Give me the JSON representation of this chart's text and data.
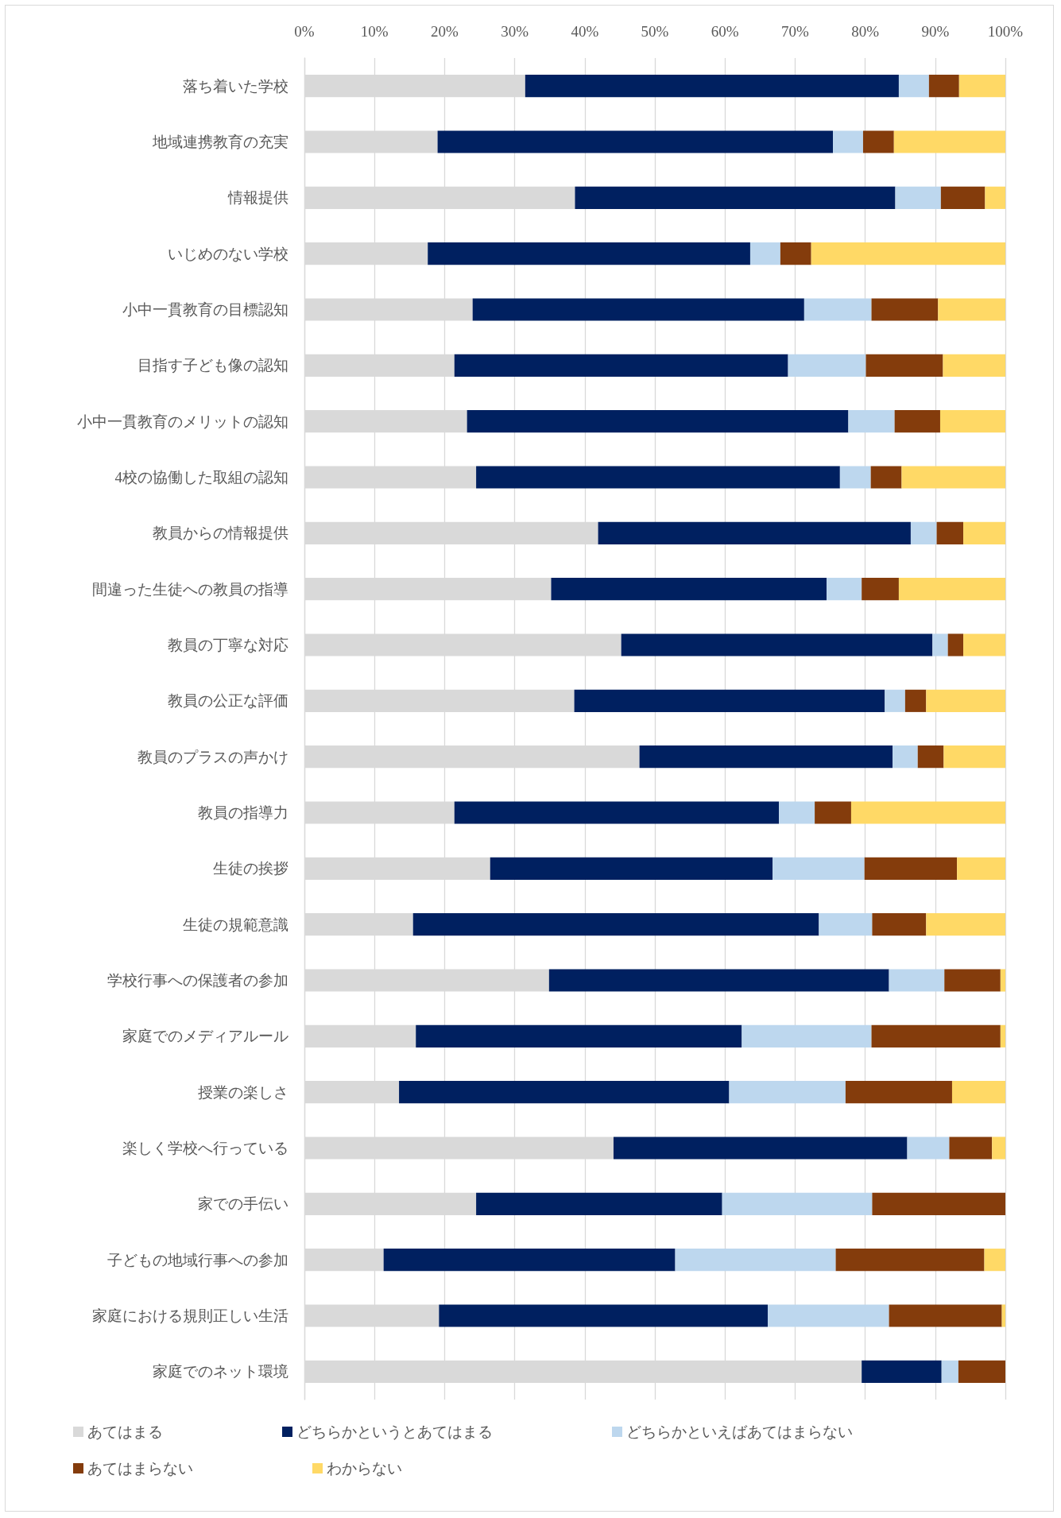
{
  "chart_data": {
    "type": "bar",
    "orientation": "horizontal",
    "stacked": true,
    "categories": [
      "落ち着いた学校",
      "地域連携教育の充実",
      "情報提供",
      "いじめのない学校",
      "小中一貫教育の目標認知",
      "目指す子ども像の認知",
      "小中一貫教育のメリットの認知",
      "4校の協働した取組の認知",
      "教員からの情報提供",
      "間違った生徒への教員の指導",
      "教員の丁寧な対応",
      "教員の公正な評価",
      "教員のプラスの声かけ",
      "教員の指導力",
      "生徒の挨拶",
      "生徒の規範意識",
      "学校行事への保護者の参加",
      "家庭でのメディアルール",
      "授業の楽しさ",
      "楽しく学校へ行っている",
      "家での手伝い",
      "子どもの地域行事への参加",
      "家庭における規則正しい生活",
      "家庭でのネット環境"
    ],
    "series": [
      {
        "name": "あてはまる",
        "color": "#d9d9d9",
        "values": [
          31.5,
          19.0,
          38.6,
          17.6,
          24.0,
          21.4,
          23.2,
          24.5,
          41.9,
          35.2,
          45.2,
          38.5,
          47.8,
          21.4,
          26.5,
          15.5,
          34.9,
          15.9,
          13.5,
          44.1,
          24.5,
          11.3,
          19.2,
          79.5
        ]
      },
      {
        "name": "どちらかというとあてはまる",
        "color": "#002060",
        "values": [
          53.3,
          56.4,
          45.7,
          46.0,
          47.3,
          47.6,
          54.4,
          51.9,
          44.6,
          39.3,
          44.4,
          44.3,
          36.1,
          46.3,
          40.3,
          57.9,
          48.5,
          46.5,
          47.1,
          41.9,
          35.1,
          41.6,
          46.9,
          11.4
        ]
      },
      {
        "name": "どちらかといえばあてはまらない",
        "color": "#bdd7ee",
        "values": [
          4.3,
          4.3,
          6.5,
          4.3,
          9.6,
          11.1,
          6.6,
          4.4,
          3.7,
          5.0,
          2.2,
          2.9,
          3.6,
          5.1,
          13.1,
          7.6,
          7.9,
          18.5,
          16.6,
          6.0,
          21.4,
          22.9,
          17.3,
          2.4
        ]
      },
      {
        "name": "あてはまらない",
        "color": "#843c0c",
        "values": [
          4.3,
          4.4,
          6.3,
          4.4,
          9.5,
          11.0,
          6.5,
          4.4,
          3.8,
          5.3,
          2.2,
          3.0,
          3.7,
          5.2,
          13.2,
          7.7,
          8.0,
          18.4,
          15.2,
          6.1,
          19.0,
          21.2,
          16.1,
          6.7
        ]
      },
      {
        "name": "わからない",
        "color": "#ffd966",
        "values": [
          6.6,
          15.9,
          2.9,
          27.7,
          9.6,
          8.9,
          9.3,
          14.8,
          6.0,
          15.2,
          6.0,
          11.3,
          8.8,
          22.0,
          6.9,
          11.3,
          0.7,
          0.7,
          7.6,
          1.9,
          0,
          3.0,
          0.5,
          0
        ]
      }
    ],
    "xlim": [
      0,
      100
    ],
    "xticks": [
      {
        "value": 0,
        "label": "0%"
      },
      {
        "value": 10,
        "label": "10%"
      },
      {
        "value": 20,
        "label": "20%"
      },
      {
        "value": 30,
        "label": "30%"
      },
      {
        "value": 40,
        "label": "40%"
      },
      {
        "value": 50,
        "label": "50%"
      },
      {
        "value": 60,
        "label": "60%"
      },
      {
        "value": 70,
        "label": "70%"
      },
      {
        "value": 80,
        "label": "80%"
      },
      {
        "value": 90,
        "label": "90%"
      },
      {
        "value": 100,
        "label": "100%"
      }
    ],
    "grid": "x",
    "legend": "bottom"
  }
}
